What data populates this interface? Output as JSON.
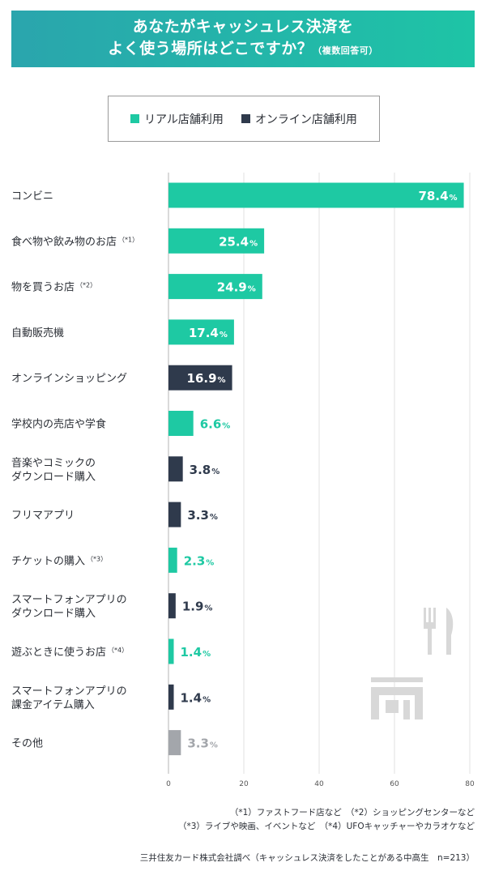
{
  "title": {
    "line1": "あなたがキャッシュレス決済を",
    "line2": "よく使う場所はどこですか？",
    "note": "（複数回答可）"
  },
  "legend": [
    {
      "label": "リアル店舗利用",
      "color": "#1ec9a3"
    },
    {
      "label": "オンライン店舗利用",
      "color": "#2f3a4c"
    }
  ],
  "colors": {
    "real": "#1ec9a3",
    "online": "#2f3a4c",
    "other": "#a3a6ab"
  },
  "chart_data": {
    "type": "bar",
    "orientation": "horizontal",
    "xlim": [
      0,
      80
    ],
    "xticks": [
      0,
      20,
      40,
      60,
      80
    ],
    "grid": true,
    "unit": "%",
    "bars": [
      {
        "label": [
          "コンビニ"
        ],
        "note": "",
        "value": 78.4,
        "group": "real"
      },
      {
        "label": [
          "食べ物や飲み物のお店"
        ],
        "note": "（*1）",
        "value": 25.4,
        "group": "real"
      },
      {
        "label": [
          "物を買うお店"
        ],
        "note": "（*2）",
        "value": 24.9,
        "group": "real"
      },
      {
        "label": [
          "自動販売機"
        ],
        "note": "",
        "value": 17.4,
        "group": "real"
      },
      {
        "label": [
          "オンラインショッピング"
        ],
        "note": "",
        "value": 16.9,
        "group": "online"
      },
      {
        "label": [
          "学校内の売店や学食"
        ],
        "note": "",
        "value": 6.6,
        "group": "real"
      },
      {
        "label": [
          "音楽やコミックの",
          "ダウンロード購入"
        ],
        "note": "",
        "value": 3.8,
        "group": "online"
      },
      {
        "label": [
          "フリマアプリ"
        ],
        "note": "",
        "value": 3.3,
        "group": "online"
      },
      {
        "label": [
          "チケットの購入"
        ],
        "note": "（*3）",
        "value": 2.3,
        "group": "real"
      },
      {
        "label": [
          "スマートフォンアプリの",
          "ダウンロード購入"
        ],
        "note": "",
        "value": 1.9,
        "group": "online"
      },
      {
        "label": [
          "遊ぶときに使うお店"
        ],
        "note": "（*4）",
        "value": 1.4,
        "group": "real"
      },
      {
        "label": [
          "スマートフォンアプリの",
          "課金アイテム購入"
        ],
        "note": "",
        "value": 1.4,
        "group": "online"
      },
      {
        "label": [
          "その他"
        ],
        "note": "",
        "value": 3.3,
        "group": "other"
      }
    ]
  },
  "footnotes": {
    "line1": "（*1）ファストフード店など　（*2）ショッピングセンターなど",
    "line2": "（*3）ライブや映画、イベントなど　（*4）UFOキャッチャーやカラオケなど"
  },
  "source": "三井住友カード株式会社調べ（キャッシュレス決済をしたことがある中高生　n=213）"
}
